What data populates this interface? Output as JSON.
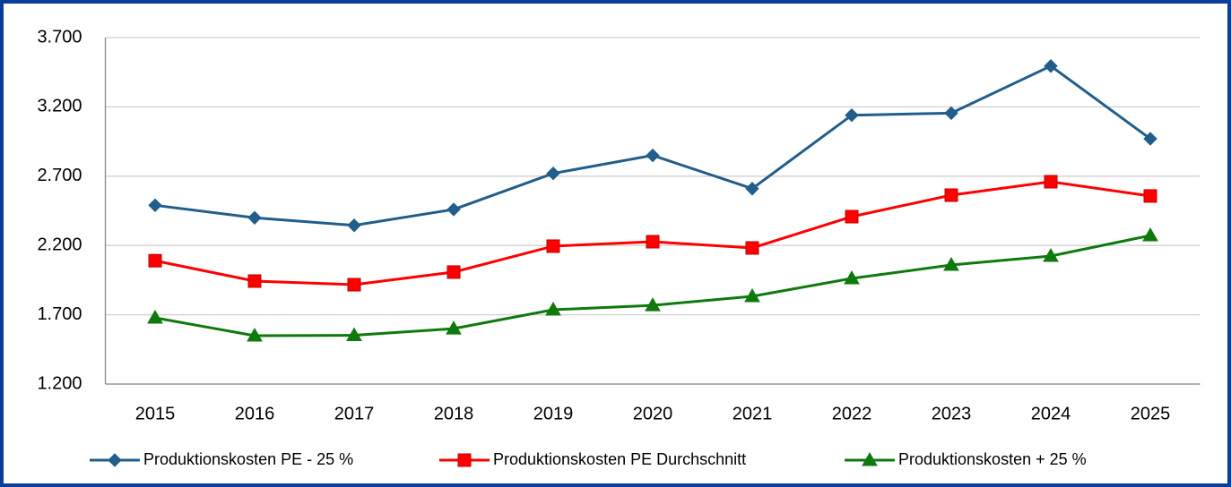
{
  "chart_data": {
    "type": "line",
    "categories": [
      "2015",
      "2016",
      "2017",
      "2018",
      "2019",
      "2020",
      "2021",
      "2022",
      "2023",
      "2024",
      "2025"
    ],
    "series": [
      {
        "name": "Produktionskosten PE - 25 %",
        "color": "#215e8b",
        "marker": "diamond",
        "values": [
          2490,
          2400,
          2345,
          2460,
          2720,
          2850,
          2610,
          3140,
          3155,
          3495,
          2970
        ]
      },
      {
        "name": "Produktionskosten PE Durchschnitt",
        "color": "#ff0000",
        "marker": "square",
        "values": [
          2090,
          1943,
          1917,
          2008,
          2195,
          2227,
          2182,
          2408,
          2563,
          2660,
          2557
        ]
      },
      {
        "name": "Produktionskosten + 25 %",
        "color": "#0e7a0e",
        "marker": "triangle",
        "values": [
          1678,
          1549,
          1552,
          1600,
          1736,
          1768,
          1833,
          1962,
          2059,
          2124,
          2272
        ]
      }
    ],
    "ylim": [
      1200,
      3700
    ],
    "yticks": [
      {
        "value": 1200,
        "label": "1.200"
      },
      {
        "value": 1700,
        "label": "1.700"
      },
      {
        "value": 2200,
        "label": "2.200"
      },
      {
        "value": 2700,
        "label": "2.700"
      },
      {
        "value": 3200,
        "label": "3.200"
      },
      {
        "value": 3700,
        "label": "3.700"
      }
    ],
    "grid": true,
    "legend": "bottom"
  }
}
